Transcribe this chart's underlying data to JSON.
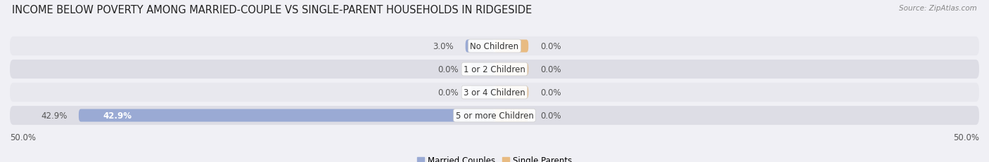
{
  "title": "INCOME BELOW POVERTY AMONG MARRIED-COUPLE VS SINGLE-PARENT HOUSEHOLDS IN RIDGESIDE",
  "source": "Source: ZipAtlas.com",
  "categories": [
    "No Children",
    "1 or 2 Children",
    "3 or 4 Children",
    "5 or more Children"
  ],
  "married_values": [
    3.0,
    0.0,
    0.0,
    42.9
  ],
  "single_values": [
    0.0,
    0.0,
    0.0,
    0.0
  ],
  "married_color": "#9aaad4",
  "single_color": "#e8bb82",
  "row_bg_light": "#e8e8ee",
  "row_bg_dark": "#dddde5",
  "xlim": 50.0,
  "legend_married": "Married Couples",
  "legend_single": "Single Parents",
  "title_fontsize": 10.5,
  "label_fontsize": 8.5,
  "value_fontsize": 8.5,
  "axis_fontsize": 8.5,
  "bg_color": "#f0f0f5",
  "married_label_color": "#ffffff",
  "value_label_color": "#555555"
}
